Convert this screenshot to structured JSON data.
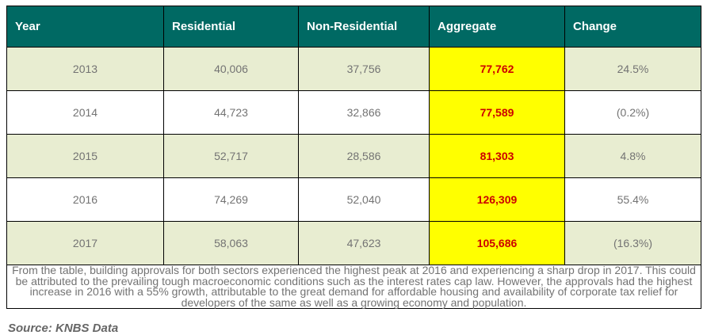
{
  "table": {
    "columns": {
      "year": "Year",
      "residential": "Residential",
      "non_residential": "Non-Residential",
      "aggregate": "Aggregate",
      "change": "Change"
    },
    "rows": [
      {
        "year": "2013",
        "residential": "40,006",
        "non_residential": "37,756",
        "aggregate": "77,762",
        "change": "24.5%"
      },
      {
        "year": "2014",
        "residential": "44,723",
        "non_residential": "32,866",
        "aggregate": "77,589",
        "change": "(0.2%)"
      },
      {
        "year": "2015",
        "residential": "52,717",
        "non_residential": "28,586",
        "aggregate": "81,303",
        "change": "4.8%"
      },
      {
        "year": "2016",
        "residential": "74,269",
        "non_residential": "52,040",
        "aggregate": "126,309",
        "change": "55.4%"
      },
      {
        "year": "2017",
        "residential": "58,063",
        "non_residential": "47,623",
        "aggregate": "105,686",
        "change": "(16.3%)"
      }
    ],
    "note": "From the table, building approvals for both sectors experienced the highest peak at 2016 and experiencing a sharp drop in 2017. This could be attributed to the prevailing tough macroeconomic conditions such as the interest rates cap law. However, the approvals had the highest increase in 2016 with a 55% growth, attributable to the great demand for affordable housing and availability of corporate tax relief for developers of the same as well as a growing economy and population."
  },
  "source": "Source: KNBS Data",
  "colors": {
    "header_bg": "#006963",
    "row_alt_bg": "#e8edd1",
    "aggregate_bg": "#ffff00",
    "aggregate_text": "#cc0000",
    "body_text": "#737373",
    "note_text": "#666666"
  },
  "chart_data": {
    "type": "table",
    "title": "Building approvals by sector (KNBS)",
    "categories": [
      "2013",
      "2014",
      "2015",
      "2016",
      "2017"
    ],
    "series": [
      {
        "name": "Residential",
        "values": [
          40006,
          44723,
          52717,
          74269,
          58063
        ]
      },
      {
        "name": "Non-Residential",
        "values": [
          37756,
          32866,
          28586,
          52040,
          47623
        ]
      },
      {
        "name": "Aggregate",
        "values": [
          77762,
          77589,
          81303,
          126309,
          105686
        ]
      },
      {
        "name": "Change %",
        "values": [
          24.5,
          -0.2,
          4.8,
          55.4,
          -16.3
        ]
      }
    ]
  }
}
